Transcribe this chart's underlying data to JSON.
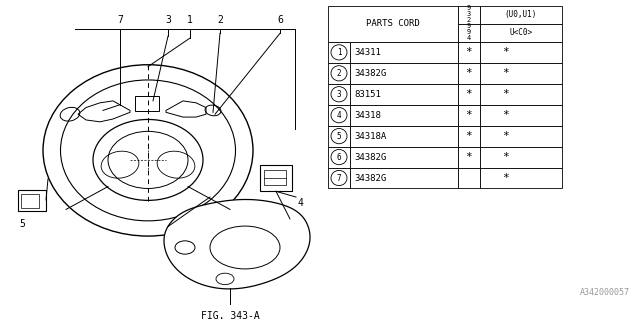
{
  "fig_label": "FIG. 343-A",
  "part_id": "A342000057",
  "parts": [
    {
      "num": 1,
      "code": "34311",
      "col2": "*",
      "col3": "*"
    },
    {
      "num": 2,
      "code": "34382G",
      "col2": "*",
      "col3": "*"
    },
    {
      "num": 3,
      "code": "83151",
      "col2": "*",
      "col3": "*"
    },
    {
      "num": 4,
      "code": "34318",
      "col2": "*",
      "col3": "*"
    },
    {
      "num": 5,
      "code": "34318A",
      "col2": "*",
      "col3": "*"
    },
    {
      "num": 6,
      "code": "34382G",
      "col2": "*",
      "col3": "*"
    },
    {
      "num": 7,
      "code": "34382G",
      "col2": "",
      "col3": "*"
    }
  ],
  "bg_color": "#ffffff",
  "line_color": "#000000",
  "text_color": "#000000"
}
